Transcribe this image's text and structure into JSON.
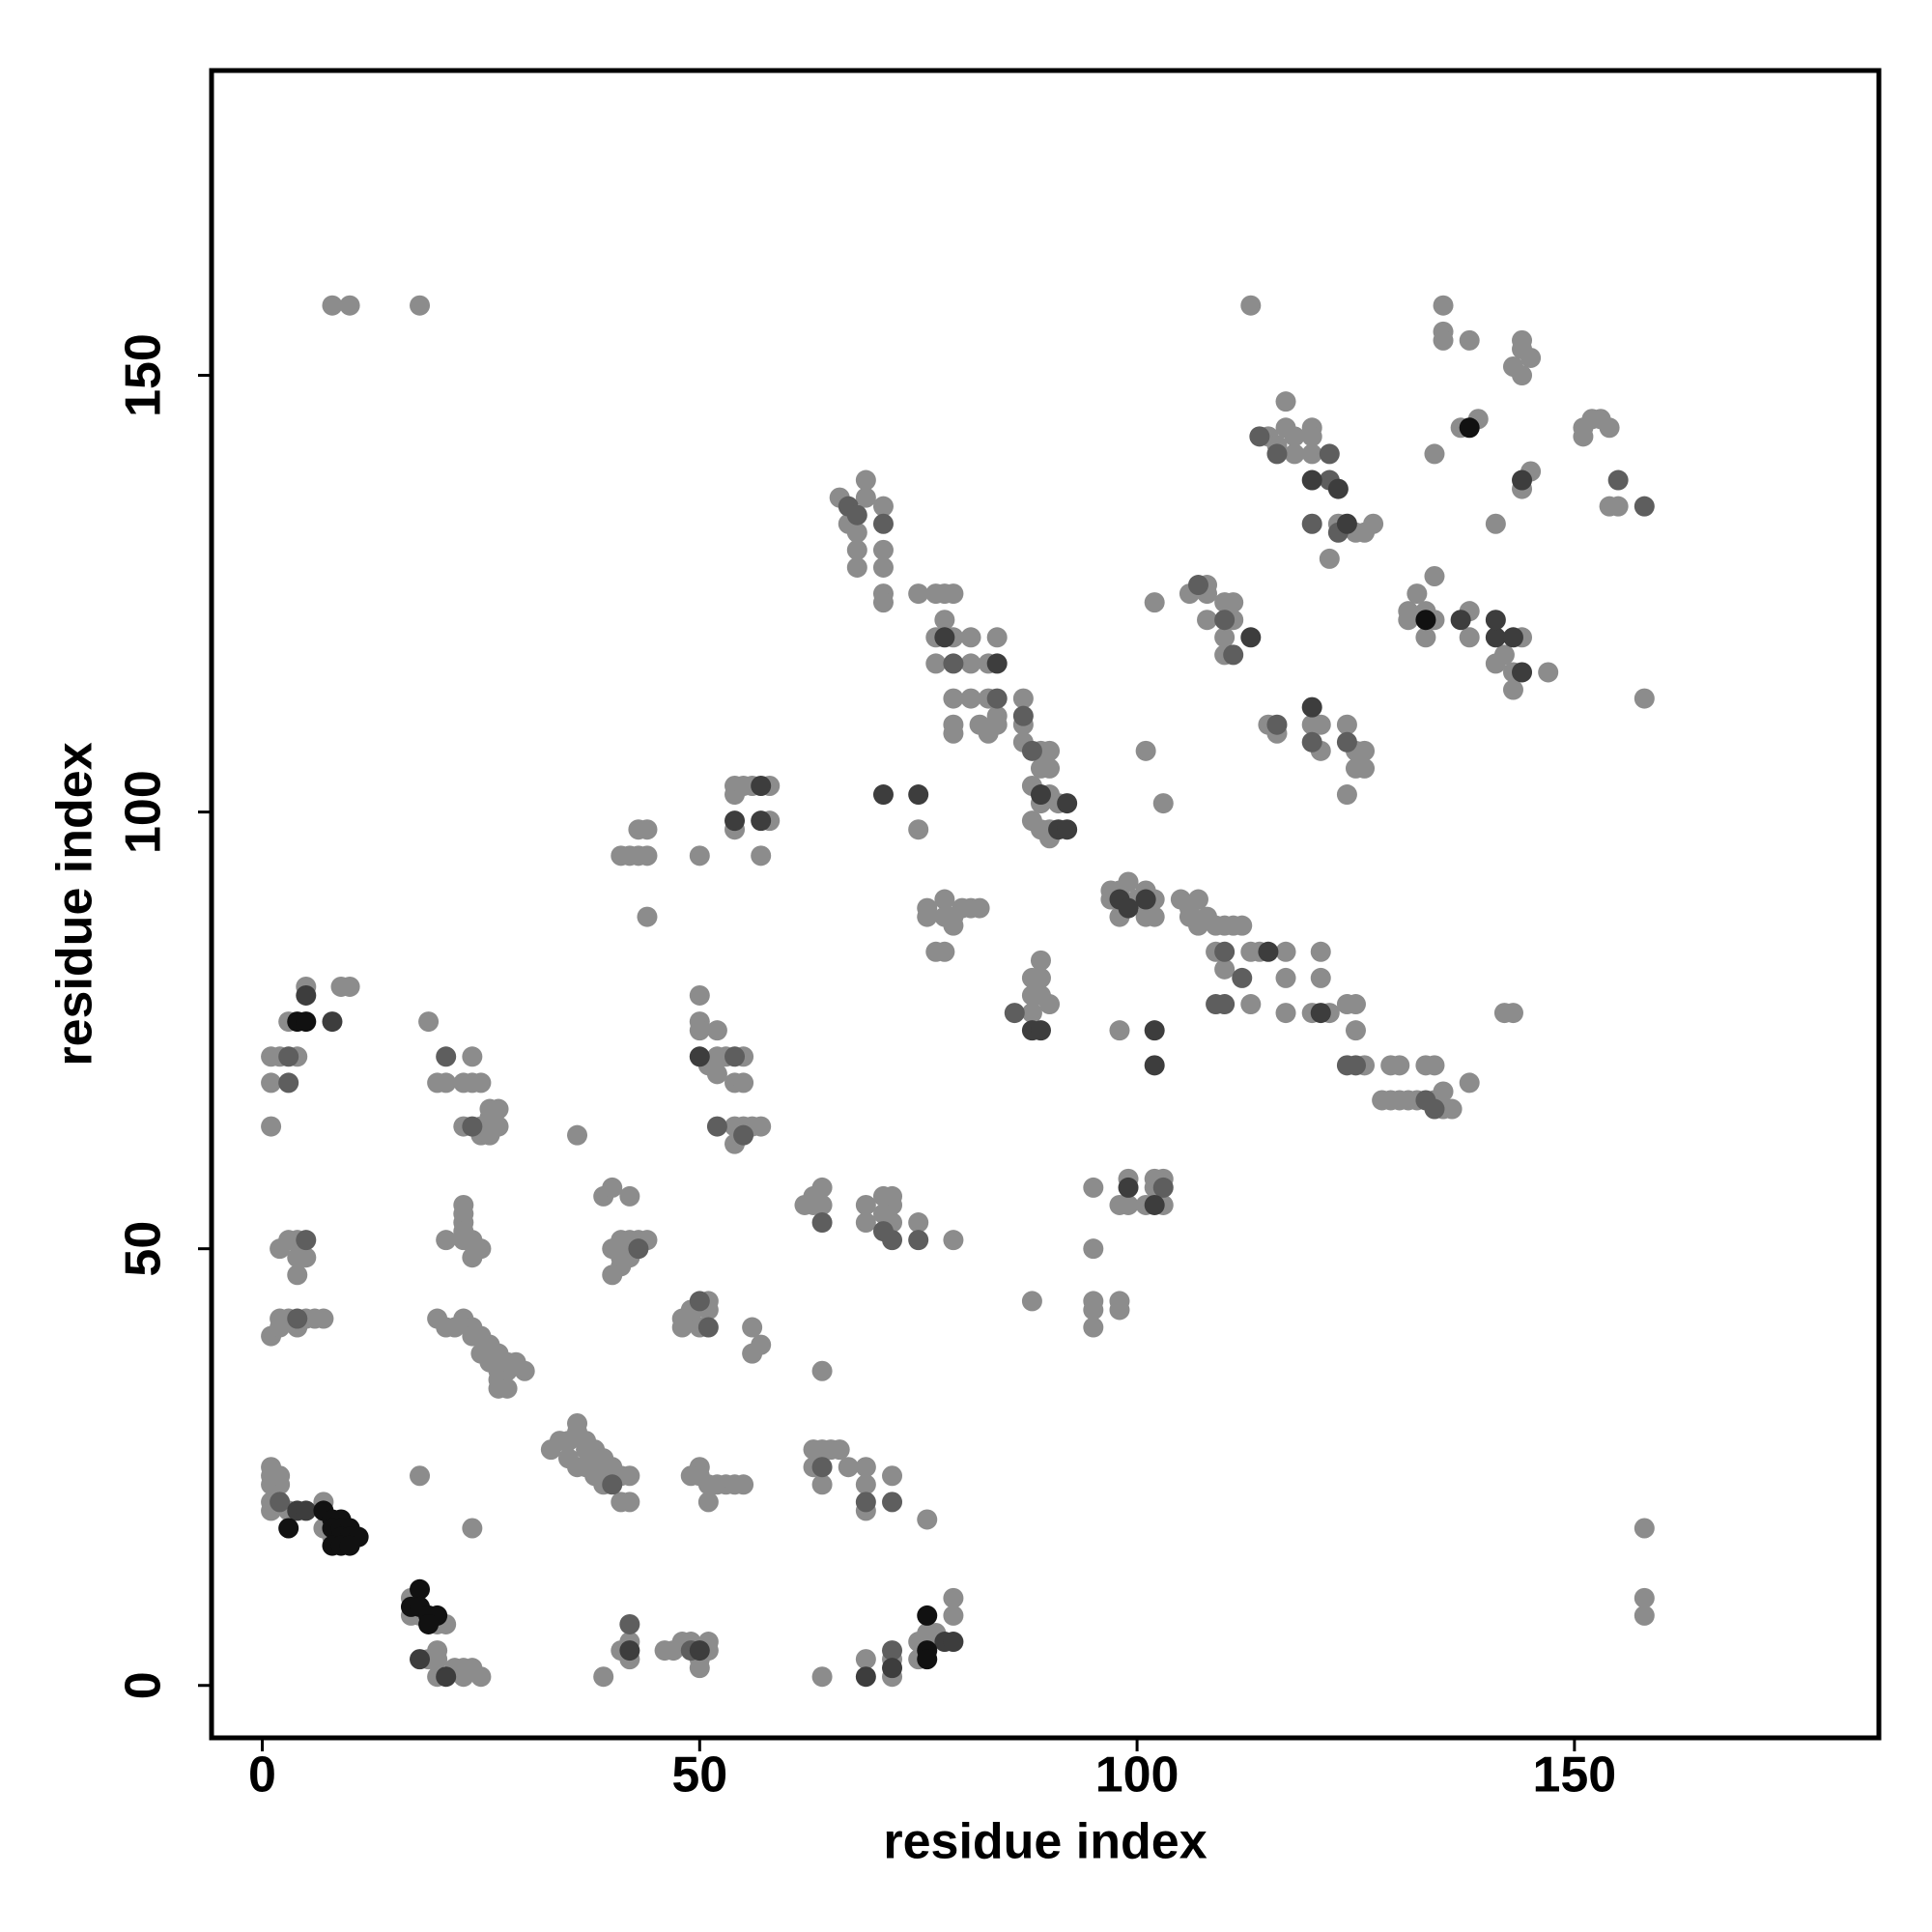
{
  "chart_data": {
    "type": "scatter",
    "xlabel": "residue index",
    "ylabel": "residue index",
    "xlim": [
      -5.8,
      184.8
    ],
    "ylim": [
      -6,
      184.9
    ],
    "xticks": [
      0,
      50,
      100,
      150
    ],
    "yticks": [
      0,
      50,
      100,
      150
    ],
    "series": [
      {
        "color": "#8c8c8c",
        "x": [
          8,
          10,
          18,
          113,
          135,
          135,
          135,
          138,
          144,
          144,
          145,
          143,
          144,
          137,
          139,
          151,
          152,
          153,
          154,
          151,
          154,
          155,
          145,
          144,
          134,
          115,
          116,
          117,
          117,
          118,
          118,
          120,
          120,
          120,
          122,
          123,
          125,
          126,
          127,
          141,
          131,
          133,
          134,
          134,
          133,
          132,
          131,
          138,
          138,
          142,
          144,
          141,
          143,
          143,
          147,
          158,
          66,
          68,
          67,
          69,
          69,
          68,
          68,
          71,
          71,
          71,
          71,
          71,
          75,
          77,
          78,
          79,
          78,
          77,
          79,
          81,
          84,
          77,
          81,
          83,
          79,
          81,
          83,
          84,
          79,
          79,
          82,
          84,
          83,
          87,
          87,
          87,
          89,
          89,
          90,
          90,
          88,
          89,
          90,
          91,
          88,
          89,
          90,
          90,
          106,
          108,
          108,
          108,
          110,
          111,
          111,
          110,
          110,
          102,
          101,
          115,
          116,
          120,
          121,
          121,
          124,
          125,
          125,
          126,
          126,
          124,
          75,
          54,
          54,
          55,
          56,
          58,
          58,
          54,
          57,
          41,
          42,
          43,
          44,
          43,
          44,
          44,
          50,
          76,
          76,
          78,
          78,
          79,
          79,
          80,
          81,
          82,
          77,
          78,
          97,
          97,
          98,
          98,
          99,
          100,
          101,
          102,
          101,
          102,
          105,
          106,
          107,
          106,
          107,
          108,
          109,
          110,
          111,
          112,
          109,
          110,
          113,
          114,
          117,
          121,
          117,
          121,
          113,
          117,
          120,
          122,
          124,
          125,
          125,
          126,
          129,
          130,
          133,
          134,
          128,
          129,
          130,
          131,
          132,
          134,
          135,
          135,
          136,
          138,
          103,
          88,
          88,
          89,
          89,
          88,
          89,
          90,
          98,
          142,
          143,
          3,
          4,
          1,
          2,
          1,
          1,
          9,
          10,
          5,
          19,
          20,
          21,
          23,
          24,
          24,
          25,
          23,
          25,
          25,
          26,
          26,
          27,
          27,
          26,
          50,
          50,
          50,
          52,
          51,
          52,
          53,
          55,
          52,
          54,
          55,
          54,
          55,
          56,
          54,
          57,
          36,
          39,
          40,
          42,
          23,
          23,
          23,
          21,
          23,
          23,
          24,
          24,
          25,
          40,
          41,
          42,
          43,
          44,
          41,
          42,
          41,
          40,
          3,
          4,
          2,
          4,
          5,
          4,
          2,
          3,
          5,
          6,
          7,
          1,
          2,
          4,
          20,
          21,
          22,
          23,
          24,
          24,
          25,
          26,
          27,
          27,
          28,
          25,
          26,
          27,
          28,
          29,
          30,
          27,
          28,
          27,
          48,
          49,
          49,
          51,
          50,
          51,
          48,
          56,
          57,
          56,
          64,
          62,
          63,
          64,
          64,
          63,
          69,
          71,
          72,
          72,
          71,
          72,
          69,
          75,
          79,
          95,
          95,
          95,
          95,
          95,
          98,
          98,
          88,
          99,
          98,
          99,
          101,
          102,
          102,
          103,
          103,
          33,
          34,
          35,
          36,
          36,
          37,
          37,
          38,
          38,
          39,
          39,
          40,
          41,
          42,
          35,
          36,
          37,
          38,
          39,
          41,
          42,
          18,
          24,
          1,
          1,
          1,
          2,
          2,
          1,
          1,
          3,
          7,
          7,
          8,
          50,
          49,
          50,
          51,
          52,
          53,
          54,
          55,
          51,
          63,
          64,
          65,
          63,
          64,
          66,
          67,
          69,
          69,
          69,
          72,
          76,
          17,
          17,
          18,
          20,
          21,
          19,
          20,
          20,
          20,
          22,
          23,
          23,
          24,
          25,
          39,
          41,
          42,
          42,
          46,
          47,
          48,
          49,
          50,
          50,
          51,
          51,
          64,
          69,
          72,
          72,
          75,
          75,
          76,
          77,
          79,
          79,
          158,
          158,
          158
        ],
        "values": [
          158,
          158,
          158,
          158,
          158,
          155,
          154,
          154,
          154,
          153,
          152,
          151,
          150,
          144,
          145,
          144,
          145,
          145,
          144,
          143,
          135,
          135,
          139,
          137,
          141,
          143,
          142,
          144,
          147,
          143,
          141,
          144,
          143,
          141,
          129,
          133,
          132,
          132,
          133,
          133,
          122,
          123,
          122,
          127,
          120,
          125,
          123,
          123,
          120,
          118,
          120,
          117,
          116,
          114,
          116,
          113,
          136,
          132,
          133,
          136,
          138,
          130,
          128,
          135,
          130,
          128,
          125,
          124,
          125,
          125,
          125,
          125,
          122,
          120,
          120,
          120,
          120,
          117,
          117,
          117,
          113,
          113,
          113,
          111,
          110,
          109,
          110,
          110,
          109,
          113,
          110,
          108,
          107,
          105,
          107,
          105,
          103,
          101,
          102,
          101,
          99,
          98,
          98,
          97,
          125,
          126,
          125,
          122,
          124,
          124,
          122,
          120,
          118,
          124,
          107,
          110,
          109,
          110,
          110,
          107,
          110,
          107,
          105,
          107,
          105,
          102,
          98,
          103,
          102,
          103,
          103,
          103,
          99,
          98,
          95,
          95,
          95,
          95,
          95,
          98,
          98,
          88,
          95,
          88,
          89,
          90,
          88,
          88,
          87,
          89,
          89,
          89,
          84,
          84,
          91,
          90,
          91,
          88,
          92,
          90,
          91,
          90,
          88,
          88,
          90,
          89,
          90,
          88,
          87,
          88,
          87,
          87,
          87,
          87,
          84,
          82,
          84,
          84,
          84,
          84,
          81,
          81,
          78,
          77,
          77,
          77,
          78,
          78,
          75,
          71,
          71,
          71,
          71,
          71,
          67,
          67,
          67,
          67,
          67,
          67,
          66,
          68,
          66,
          69,
          101,
          77,
          81,
          81,
          83,
          79,
          79,
          78,
          75,
          77,
          77,
          76,
          72,
          72,
          72,
          69,
          64,
          80,
          80,
          80,
          76,
          69,
          69,
          69,
          69,
          72,
          69,
          64,
          63,
          64,
          65,
          66,
          64,
          66,
          63,
          79,
          76,
          75,
          75,
          71,
          72,
          72,
          72,
          70,
          69,
          69,
          64,
          64,
          64,
          62,
          64,
          63,
          56,
          57,
          56,
          55,
          54,
          53,
          51,
          52,
          51,
          51,
          49,
          50,
          50,
          51,
          51,
          51,
          51,
          49,
          49,
          48,
          47,
          51,
          51,
          50,
          49,
          49,
          47,
          42,
          42,
          42,
          42,
          42,
          40,
          41,
          41,
          42,
          41,
          41,
          42,
          41,
          40,
          40,
          39,
          38,
          37,
          37,
          38,
          37,
          36,
          36,
          37,
          36,
          35,
          34,
          34,
          42,
          42,
          43,
          44,
          41,
          43,
          41,
          41,
          39,
          38,
          36,
          55,
          56,
          57,
          55,
          55,
          55,
          56,
          56,
          55,
          54,
          53,
          53,
          53,
          51,
          57,
          50,
          44,
          43,
          41,
          44,
          43,
          44,
          58,
          55,
          55,
          55,
          58,
          57,
          58,
          55,
          27,
          28,
          28,
          29,
          30,
          28,
          27,
          27,
          26,
          26,
          25,
          25,
          24,
          24,
          26,
          25,
          25,
          24,
          23,
          21,
          21,
          24,
          18,
          25,
          24,
          23,
          23,
          24,
          21,
          20,
          20,
          21,
          18,
          17,
          25,
          24,
          24,
          23,
          23,
          23,
          23,
          23,
          21,
          27,
          27,
          27,
          25,
          23,
          27,
          25,
          25,
          23,
          20,
          24,
          19,
          10,
          8,
          8,
          7,
          7,
          3,
          4,
          3,
          1,
          2,
          2,
          1,
          2,
          1,
          1,
          4,
          3,
          5,
          4,
          4,
          5,
          5,
          3,
          2,
          5,
          4,
          1,
          3,
          3,
          1,
          5,
          3,
          6,
          6,
          8,
          10,
          18,
          10,
          8
        ]
      },
      {
        "color": "#5e5e5e",
        "x": [
          67,
          68,
          71,
          79,
          84,
          87,
          88,
          107,
          110,
          111,
          124,
          116,
          120,
          3,
          3,
          21,
          24,
          5,
          4,
          43,
          50,
          51,
          64,
          71,
          72,
          75,
          103,
          40,
          2,
          64,
          69,
          72,
          42,
          49,
          72,
          134,
          133,
          125,
          124,
          110,
          112,
          109,
          110,
          86,
          54,
          52,
          55,
          155,
          158,
          114,
          116,
          122,
          123,
          122,
          120
        ],
        "values": [
          135,
          134,
          133,
          117,
          113,
          111,
          107,
          126,
          122,
          118,
          108,
          110,
          108,
          72,
          69,
          72,
          64,
          51,
          42,
          50,
          44,
          41,
          53,
          52,
          51,
          51,
          57,
          23,
          21,
          25,
          21,
          21,
          7,
          4,
          4,
          66,
          67,
          71,
          71,
          84,
          81,
          78,
          78,
          77,
          72,
          64,
          63,
          138,
          135,
          143,
          141,
          141,
          132,
          138,
          133
        ]
      },
      {
        "color": "#3d3d3d",
        "x": [
          120,
          144,
          92,
          91,
          92,
          89,
          101,
          98,
          99,
          113,
          120,
          141,
          144,
          84,
          78,
          4,
          5,
          8,
          5,
          54,
          57,
          57,
          18,
          42,
          72,
          78,
          79,
          71,
          75,
          115,
          121,
          102,
          102,
          88,
          89,
          50,
          99,
          102,
          137,
          141,
          143,
          124,
          123,
          21,
          50,
          69
        ],
        "values": [
          138,
          138,
          101,
          98,
          98,
          102,
          90,
          90,
          89,
          120,
          112,
          120,
          116,
          117,
          120,
          20,
          20,
          76,
          79,
          99,
          99,
          103,
          3,
          4,
          2,
          5,
          5,
          102,
          102,
          84,
          77,
          75,
          71,
          75,
          75,
          72,
          57,
          55,
          122,
          122,
          120,
          133,
          137,
          1,
          4,
          1
        ]
      },
      {
        "color": "#111111",
        "x": [
          7,
          8,
          9,
          8,
          9,
          10,
          9,
          10,
          11,
          8,
          9,
          10,
          17,
          18,
          18,
          19,
          20,
          19,
          76,
          76,
          76,
          138,
          133,
          4,
          5,
          3
        ],
        "values": [
          20,
          19,
          19,
          18,
          18,
          18,
          17,
          17,
          17,
          16,
          16,
          16,
          9,
          11,
          9,
          8,
          8,
          7,
          8,
          4,
          3,
          144,
          122,
          76,
          76,
          18
        ]
      }
    ]
  }
}
